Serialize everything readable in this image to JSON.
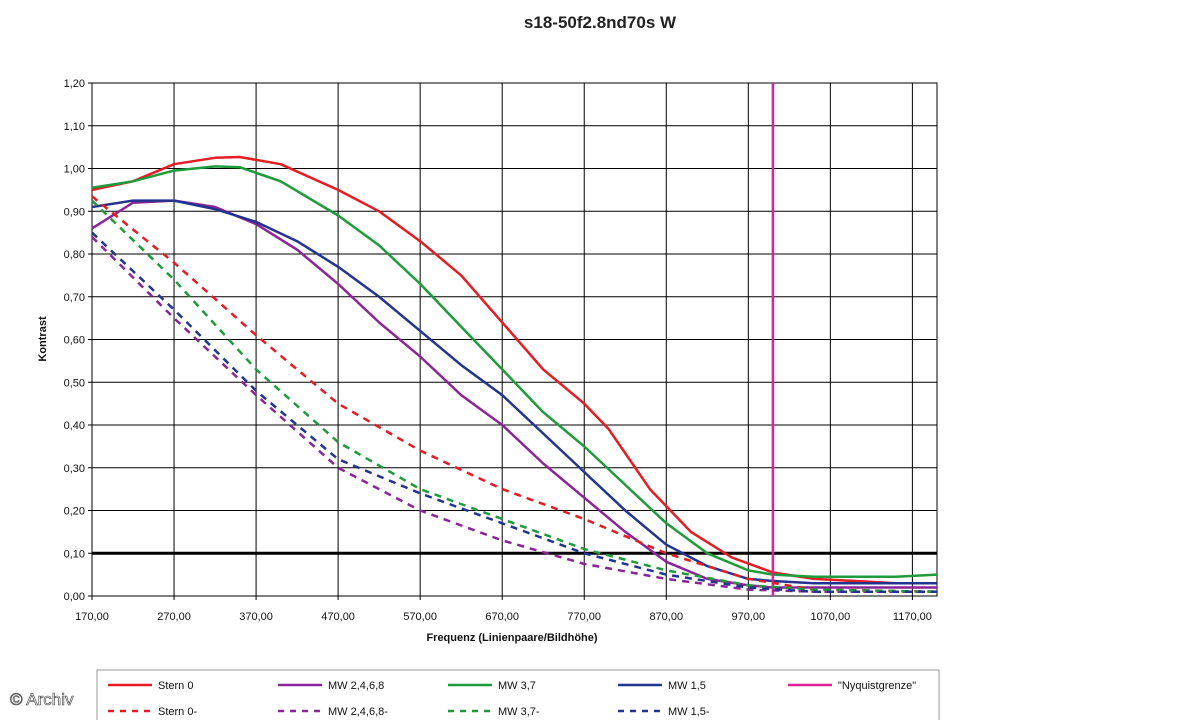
{
  "chart_data": {
    "type": "line",
    "title": "s18-50f2.8nd70s W",
    "xlabel": "Frequenz (Linienpaare/Bildhöhe)",
    "ylabel": "Kontrast",
    "xlim": [
      170,
      1200
    ],
    "ylim": [
      0,
      1.2
    ],
    "x_ticks": [
      "170,00",
      "270,00",
      "370,00",
      "470,00",
      "570,00",
      "670,00",
      "770,00",
      "870,00",
      "970,00",
      "1070,00",
      "1170,00"
    ],
    "y_ticks": [
      "0,00",
      "0,10",
      "0,20",
      "0,30",
      "0,40",
      "0,50",
      "0,60",
      "0,70",
      "0,80",
      "0,90",
      "1,00",
      "1,10",
      "1,20"
    ],
    "grid": true,
    "legend_position": "bottom",
    "reference_line": {
      "y": 0.1,
      "color": "#000000"
    },
    "series": [
      {
        "name": "Stern 0",
        "color": "#e31d23",
        "style": "solid",
        "points": [
          [
            170,
            0.95
          ],
          [
            220,
            0.97
          ],
          [
            270,
            1.01
          ],
          [
            320,
            1.025
          ],
          [
            350,
            1.027
          ],
          [
            400,
            1.01
          ],
          [
            470,
            0.95
          ],
          [
            520,
            0.9
          ],
          [
            570,
            0.83
          ],
          [
            620,
            0.75
          ],
          [
            670,
            0.64
          ],
          [
            720,
            0.53
          ],
          [
            770,
            0.45
          ],
          [
            800,
            0.39
          ],
          [
            850,
            0.25
          ],
          [
            900,
            0.15
          ],
          [
            950,
            0.09
          ],
          [
            1000,
            0.055
          ],
          [
            1050,
            0.04
          ],
          [
            1100,
            0.035
          ],
          [
            1150,
            0.03
          ],
          [
            1200,
            0.03
          ]
        ]
      },
      {
        "name": "MW 2,4,6,8",
        "color": "#8b2496",
        "style": "solid",
        "points": [
          [
            170,
            0.86
          ],
          [
            220,
            0.92
          ],
          [
            270,
            0.925
          ],
          [
            320,
            0.91
          ],
          [
            370,
            0.87
          ],
          [
            420,
            0.81
          ],
          [
            470,
            0.73
          ],
          [
            520,
            0.64
          ],
          [
            570,
            0.56
          ],
          [
            620,
            0.47
          ],
          [
            670,
            0.4
          ],
          [
            720,
            0.31
          ],
          [
            770,
            0.23
          ],
          [
            820,
            0.15
          ],
          [
            870,
            0.08
          ],
          [
            920,
            0.04
          ],
          [
            970,
            0.025
          ],
          [
            1000,
            0.02
          ],
          [
            1050,
            0.02
          ],
          [
            1100,
            0.02
          ],
          [
            1150,
            0.02
          ],
          [
            1200,
            0.02
          ]
        ]
      },
      {
        "name": "MW 3,7",
        "color": "#1e9b3a",
        "style": "solid",
        "points": [
          [
            170,
            0.955
          ],
          [
            220,
            0.97
          ],
          [
            270,
            0.995
          ],
          [
            320,
            1.005
          ],
          [
            350,
            1.003
          ],
          [
            400,
            0.97
          ],
          [
            470,
            0.89
          ],
          [
            520,
            0.82
          ],
          [
            570,
            0.73
          ],
          [
            620,
            0.63
          ],
          [
            670,
            0.53
          ],
          [
            720,
            0.43
          ],
          [
            770,
            0.35
          ],
          [
            820,
            0.26
          ],
          [
            870,
            0.17
          ],
          [
            920,
            0.1
          ],
          [
            970,
            0.06
          ],
          [
            1000,
            0.05
          ],
          [
            1050,
            0.045
          ],
          [
            1100,
            0.045
          ],
          [
            1150,
            0.045
          ],
          [
            1200,
            0.05
          ]
        ]
      },
      {
        "name": "MW 1,5",
        "color": "#23348f",
        "style": "solid",
        "points": [
          [
            170,
            0.91
          ],
          [
            220,
            0.925
          ],
          [
            270,
            0.925
          ],
          [
            320,
            0.905
          ],
          [
            370,
            0.875
          ],
          [
            420,
            0.83
          ],
          [
            470,
            0.77
          ],
          [
            520,
            0.7
          ],
          [
            570,
            0.62
          ],
          [
            620,
            0.54
          ],
          [
            670,
            0.47
          ],
          [
            720,
            0.38
          ],
          [
            770,
            0.29
          ],
          [
            820,
            0.2
          ],
          [
            870,
            0.12
          ],
          [
            920,
            0.07
          ],
          [
            970,
            0.04
          ],
          [
            1000,
            0.035
          ],
          [
            1050,
            0.03
          ],
          [
            1100,
            0.03
          ],
          [
            1150,
            0.03
          ],
          [
            1200,
            0.03
          ]
        ]
      },
      {
        "name": "\"Nyquistgrenze\"",
        "color": "#e0209a",
        "style": "solid",
        "points": [
          [
            1000,
            0
          ],
          [
            1000,
            1.2
          ]
        ]
      },
      {
        "name": "Stern 0-",
        "color": "#e31d23",
        "style": "dashed",
        "points": [
          [
            170,
            0.935
          ],
          [
            270,
            0.78
          ],
          [
            370,
            0.61
          ],
          [
            470,
            0.45
          ],
          [
            570,
            0.34
          ],
          [
            670,
            0.25
          ],
          [
            770,
            0.18
          ],
          [
            870,
            0.1
          ],
          [
            970,
            0.04
          ],
          [
            1050,
            0.015
          ],
          [
            1200,
            0.01
          ]
        ]
      },
      {
        "name": "MW 2,4,6,8-",
        "color": "#8b2496",
        "style": "dashed",
        "points": [
          [
            170,
            0.84
          ],
          [
            270,
            0.65
          ],
          [
            370,
            0.47
          ],
          [
            470,
            0.3
          ],
          [
            570,
            0.2
          ],
          [
            670,
            0.13
          ],
          [
            770,
            0.075
          ],
          [
            870,
            0.04
          ],
          [
            970,
            0.015
          ],
          [
            1050,
            0.01
          ],
          [
            1200,
            0.01
          ]
        ]
      },
      {
        "name": "MW 3,7-",
        "color": "#1e9b3a",
        "style": "dashed",
        "points": [
          [
            170,
            0.925
          ],
          [
            270,
            0.74
          ],
          [
            370,
            0.53
          ],
          [
            470,
            0.36
          ],
          [
            570,
            0.25
          ],
          [
            670,
            0.18
          ],
          [
            770,
            0.11
          ],
          [
            870,
            0.06
          ],
          [
            970,
            0.025
          ],
          [
            1050,
            0.015
          ],
          [
            1200,
            0.01
          ]
        ]
      },
      {
        "name": "MW 1,5-",
        "color": "#23348f",
        "style": "dashed",
        "points": [
          [
            170,
            0.85
          ],
          [
            270,
            0.67
          ],
          [
            370,
            0.48
          ],
          [
            470,
            0.32
          ],
          [
            570,
            0.24
          ],
          [
            670,
            0.17
          ],
          [
            770,
            0.1
          ],
          [
            870,
            0.05
          ],
          [
            970,
            0.02
          ],
          [
            1050,
            0.01
          ],
          [
            1200,
            0.01
          ]
        ]
      }
    ]
  },
  "watermark": "© Archiv"
}
